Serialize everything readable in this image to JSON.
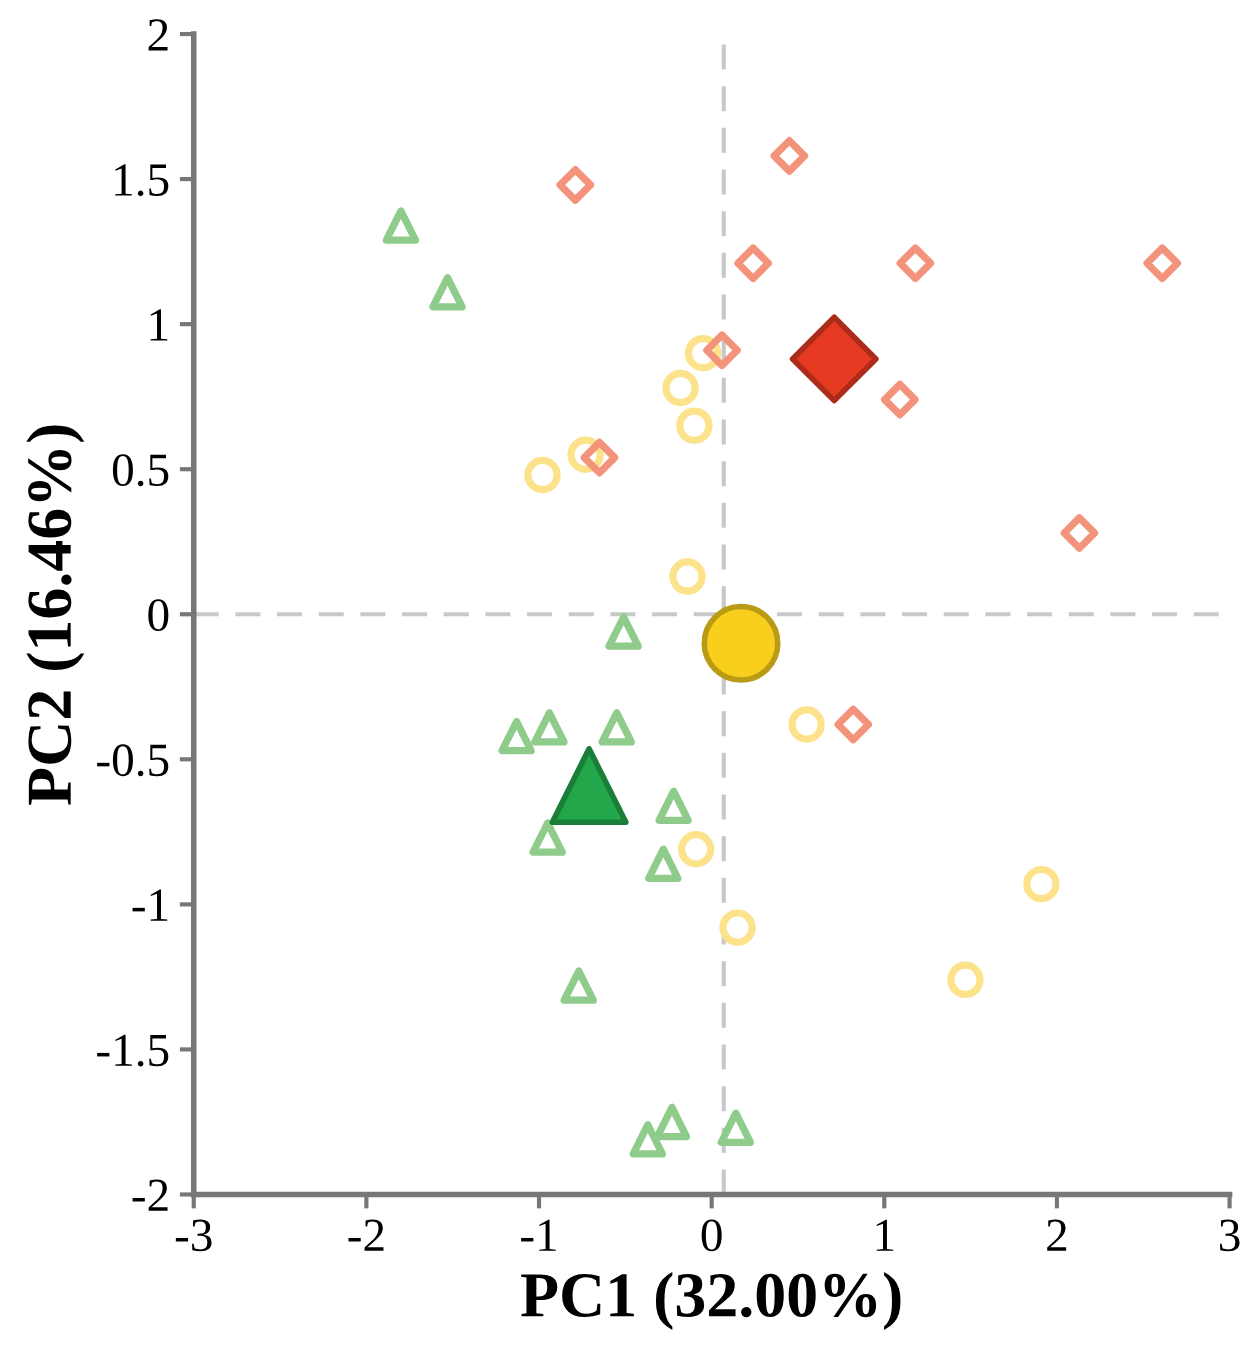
{
  "chart_data": {
    "type": "scatter",
    "xlabel": "PC1 (32.00%)",
    "ylabel": "PC2 (16.46%)",
    "xlim": [
      -3,
      3
    ],
    "xticks": [
      -3,
      -2,
      -1,
      0,
      1,
      2,
      3
    ],
    "ylim": [
      -2,
      2
    ],
    "yticks": [
      -2,
      -1.5,
      -1,
      -0.5,
      0,
      0.5,
      1,
      1.5,
      2
    ],
    "grid": false,
    "legend": false,
    "ref_lines": [
      {
        "axis": "x",
        "value": 0.07,
        "color": "#c8c8c8",
        "line_style": "dashed"
      },
      {
        "axis": "y",
        "value": 0,
        "color": "#c8c8c8",
        "line_style": "dashed"
      }
    ],
    "series": [
      {
        "marker": "triangle",
        "color": "#8fcb8b",
        "x": [
          -1.8,
          -1.53,
          -0.51,
          -1.13,
          -0.94,
          -0.55,
          -0.22,
          -0.95,
          -0.28,
          -0.77,
          -0.23,
          -0.37,
          0.14
        ],
        "values": [
          1.34,
          1.11,
          -0.06,
          -0.42,
          -0.39,
          -0.39,
          -0.66,
          -0.77,
          -0.86,
          -1.28,
          -1.75,
          -1.81,
          -1.77
        ]
      },
      {
        "marker": "circle",
        "color": "#fde28c",
        "x": [
          -0.98,
          -0.73,
          -0.18,
          -0.1,
          -0.05,
          -0.14,
          0.55,
          -0.09,
          0.15,
          1.91,
          1.47
        ],
        "values": [
          0.48,
          0.55,
          0.78,
          0.65,
          0.9,
          0.13,
          -0.38,
          -0.81,
          -1.08,
          -0.93,
          -1.26
        ]
      },
      {
        "marker": "diamond",
        "color": "#f4937b",
        "x": [
          -0.79,
          -0.65,
          0.45,
          0.24,
          1.18,
          2.61,
          0.06,
          1.09,
          2.13,
          0.82
        ],
        "values": [
          1.48,
          0.54,
          1.58,
          1.21,
          1.21,
          1.21,
          0.91,
          0.74,
          0.28,
          -0.38
        ]
      },
      {
        "marker": "triangle",
        "color": "#22a84a",
        "type": "bubble",
        "sizes": [
          0.64
        ],
        "x": [
          -0.71
        ],
        "values": [
          -0.59
        ]
      },
      {
        "marker": "circle",
        "color": "#f8cf1c",
        "type": "bubble",
        "sizes": [
          1
        ],
        "x": [
          0.17
        ],
        "values": [
          -0.1
        ]
      },
      {
        "marker": "diamond",
        "color": "#e63a22",
        "type": "bubble",
        "sizes": [
          0.82
        ],
        "x": [
          0.71
        ],
        "values": [
          0.88
        ]
      }
    ]
  }
}
